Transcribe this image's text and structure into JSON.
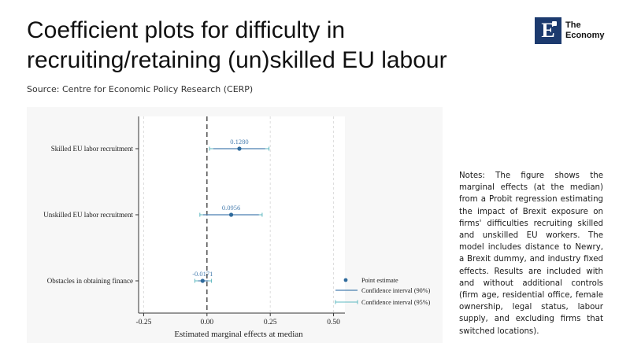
{
  "header": {
    "title": "Coefficient plots for difficulty in recruiting/retaining (un)skilled EU labour",
    "source": "Source: Centre for Economic Policy Research (CERP)"
  },
  "logo": {
    "mark": "E",
    "line1": "The",
    "line2": "Economy"
  },
  "notes": "Notes: The figure shows the marginal effects (at the median) from a Probit regression estimating the impact of Brexit exposure on firms' difficulties recruiting skilled and unskilled EU workers. The model includes distance to Newry, a Brexit dummy, and industry fixed effects. Results are included with and without additional controls (firm age, residential office, female ownership, legal status, labour supply, and excluding firms that switched locations).",
  "chart_data": {
    "type": "scatter",
    "subtype": "coefficient-plot",
    "xlabel": "Estimated marginal effects at median",
    "xlim": [
      -0.27,
      0.52
    ],
    "xticks": [
      -0.25,
      0.0,
      0.25,
      0.5
    ],
    "xtick_labels": [
      "-0.25",
      "0.00",
      "0.25",
      "0.50"
    ],
    "reference_line": 0,
    "grid": "vertical dashed",
    "legend_position": "bottom-right",
    "legend": [
      "Point estimate",
      "Confidence interval (90%)",
      "Confidence interval (95%)"
    ],
    "colors": {
      "point": "#2e6a9c",
      "ci90": "#4a7fb0",
      "ci95": "#5fb8c0",
      "label": "#4a7fb0",
      "zero_line": "#444444"
    },
    "series": [
      {
        "label": "Skilled EU labor recruitment",
        "estimate": 0.128,
        "estimate_label": "0.1280",
        "ci90": [
          0.025,
          0.23
        ],
        "ci95": [
          0.01,
          0.245
        ]
      },
      {
        "label": "Unskilled EU labor recruitment",
        "estimate": 0.0956,
        "estimate_label": "0.0956",
        "ci90": [
          -0.015,
          0.205
        ],
        "ci95": [
          -0.028,
          0.218
        ]
      },
      {
        "label": "Obstacles in obtaining finance",
        "estimate": -0.0171,
        "estimate_label": "-0.0171",
        "ci90": [
          -0.035,
          0.005
        ],
        "ci95": [
          -0.048,
          0.018
        ]
      }
    ]
  }
}
